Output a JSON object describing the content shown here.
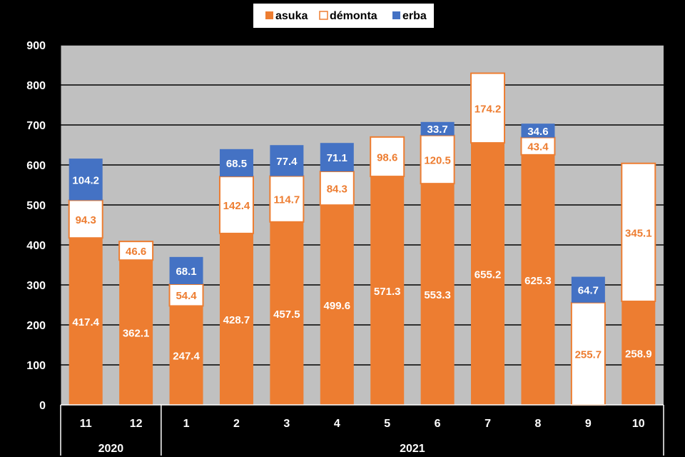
{
  "chart_data": {
    "type": "bar",
    "stacked": true,
    "categories": [
      "11",
      "12",
      "1",
      "2",
      "3",
      "4",
      "5",
      "6",
      "7",
      "8",
      "9",
      "10"
    ],
    "year_groups": [
      {
        "label": "2020",
        "categories": [
          "11",
          "12"
        ]
      },
      {
        "label": "2021",
        "categories": [
          "1",
          "2",
          "3",
          "4",
          "5",
          "6",
          "7",
          "8",
          "9",
          "10"
        ]
      }
    ],
    "series": [
      {
        "name": "asuka",
        "color": "#ED7D31",
        "values": [
          417.4,
          362.1,
          247.4,
          428.7,
          457.5,
          499.6,
          571.3,
          553.3,
          655.2,
          625.3,
          null,
          258.9
        ]
      },
      {
        "name": "démonta",
        "color": "#FFFFFF",
        "values": [
          94.3,
          46.6,
          54.4,
          142.4,
          114.7,
          84.3,
          98.6,
          120.5,
          174.2,
          43.4,
          255.7,
          345.1
        ]
      },
      {
        "name": "erba",
        "color": "#4472C4",
        "values": [
          104.2,
          null,
          68.1,
          68.5,
          77.4,
          71.1,
          null,
          33.7,
          null,
          34.6,
          64.7,
          null
        ]
      }
    ],
    "ylim": [
      0,
      900
    ],
    "yticks": [
      0,
      100,
      200,
      300,
      400,
      500,
      600,
      700,
      800,
      900
    ],
    "grid": true,
    "legend": "top-center",
    "title": "",
    "xlabel": "",
    "ylabel": ""
  }
}
